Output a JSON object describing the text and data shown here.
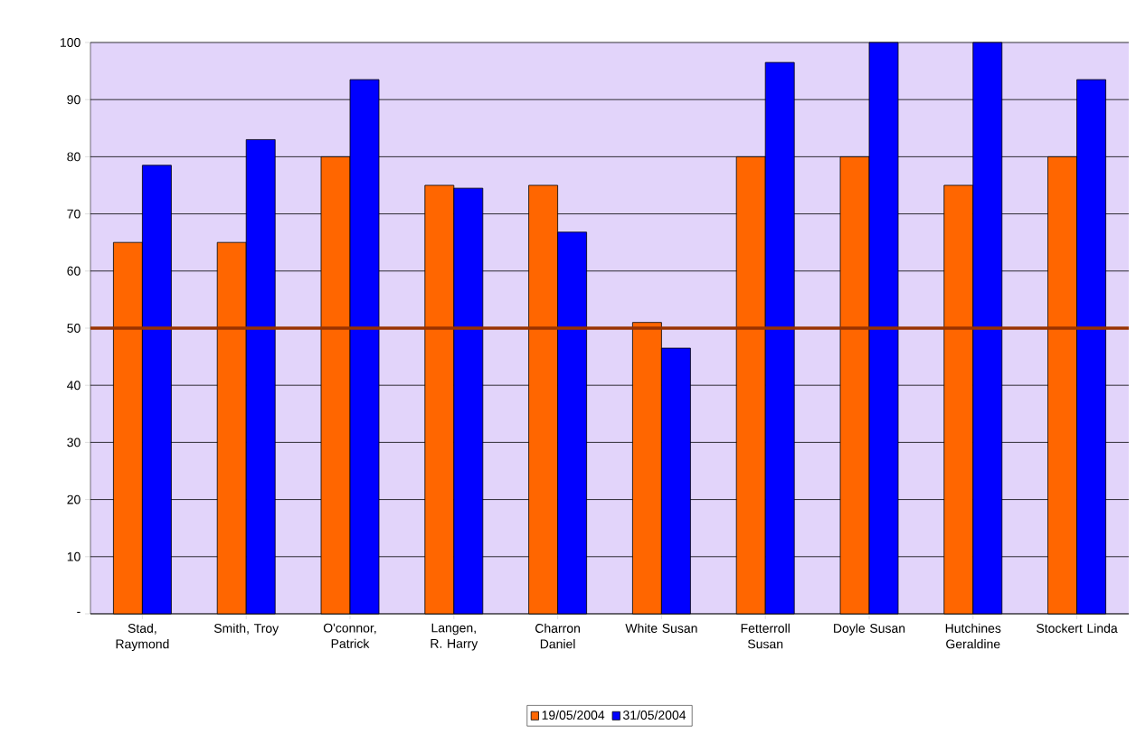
{
  "chart_data": {
    "type": "bar",
    "categories": [
      "Stad, Raymond",
      "Smith, Troy",
      "O'connor, Patrick",
      "Langen, R. Harry",
      "Charron Daniel",
      "White Susan",
      "Fetterroll Susan",
      "Doyle Susan",
      "Hutchines Geraldine",
      "Stockert Linda"
    ],
    "series": [
      {
        "name": "19/05/2004",
        "color": "#ff6600",
        "values": [
          65,
          65,
          80,
          75,
          75,
          51,
          80,
          80,
          75,
          80
        ]
      },
      {
        "name": "31/05/2004",
        "color": "#0000ff",
        "values": [
          78.5,
          83,
          93.5,
          74.5,
          66.8,
          46.5,
          96.5,
          100,
          100,
          93.5
        ]
      }
    ],
    "ylim": [
      0,
      100
    ],
    "yticks": [
      {
        "value": 0,
        "label": "-"
      },
      10,
      20,
      30,
      40,
      50,
      60,
      70,
      80,
      90,
      100
    ],
    "ref_lines": [
      {
        "axis": "y",
        "value": 50,
        "color": "#993300"
      }
    ],
    "grid": "y",
    "legend": "bottom"
  }
}
